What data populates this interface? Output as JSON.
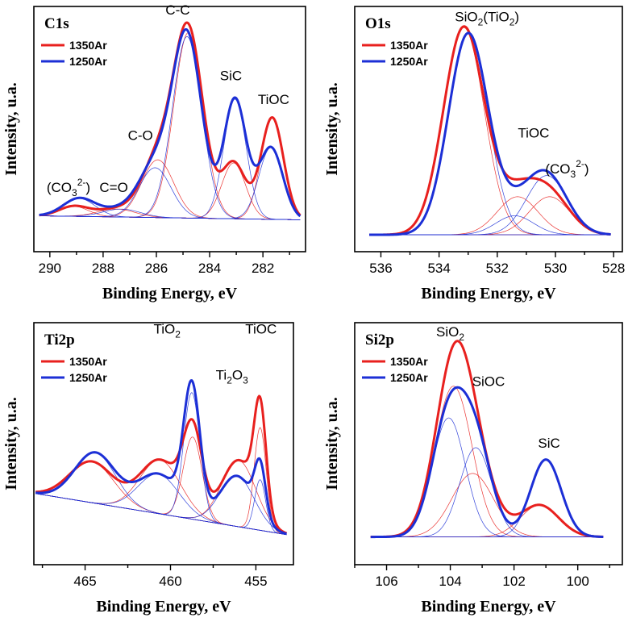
{
  "colors": {
    "red": "#e8201e",
    "blue": "#1c2fd6",
    "black": "#000000"
  },
  "chart_data": [
    {
      "type": "line",
      "panel": "C1s",
      "title": "C1s",
      "xlabel": "Binding Energy, eV",
      "ylabel": "Intensity, u.a.",
      "xlim": [
        290.6,
        280.4
      ],
      "ylim": [
        -0.18,
        1.05
      ],
      "x_reversed": true,
      "xticks": [
        290,
        288,
        286,
        284,
        282
      ],
      "legend": {
        "position": "top-left",
        "entries": [
          "1350Ar",
          "1250Ar"
        ]
      },
      "annotations": [
        {
          "text": "(CO",
          "sub": "3",
          "sup": "2-",
          "tail": ")",
          "x": 289.3,
          "y": 0.12
        },
        {
          "text": "C=O",
          "x": 287.6,
          "y": 0.12
        },
        {
          "text": "C-O",
          "x": 286.6,
          "y": 0.38
        },
        {
          "text": "C-C",
          "x": 285.2,
          "y": 1.01
        },
        {
          "text": "SiC",
          "x": 283.2,
          "y": 0.68
        },
        {
          "text": "TiOC",
          "x": 281.6,
          "y": 0.56
        }
      ],
      "baseline": {
        "x": [
          290.4,
          280.6
        ],
        "y": [
          0.0,
          -0.02
        ]
      },
      "peaks": {
        "1350Ar": [
          [
            289.1,
            0.55,
            0.05
          ],
          [
            287.5,
            0.7,
            0.04
          ],
          [
            285.95,
            0.6,
            0.29
          ],
          [
            284.8,
            0.55,
            0.93
          ],
          [
            283.1,
            0.45,
            0.28
          ],
          [
            281.65,
            0.42,
            0.51
          ]
        ],
        "1250Ar": [
          [
            288.9,
            0.6,
            0.09
          ],
          [
            287.3,
            0.7,
            0.04
          ],
          [
            286.05,
            0.6,
            0.25
          ],
          [
            284.85,
            0.55,
            0.91
          ],
          [
            283.05,
            0.42,
            0.6
          ],
          [
            281.7,
            0.45,
            0.36
          ]
        ]
      },
      "series": [
        {
          "name": "1350Ar",
          "color": "#e8201e",
          "width": 3
        },
        {
          "name": "1250Ar",
          "color": "#1c2fd6",
          "width": 3
        }
      ]
    },
    {
      "type": "line",
      "panel": "O1s",
      "title": "O1s",
      "xlabel": "Binding Energy, eV",
      "ylabel": "Intensity, u.a.",
      "xlim": [
        536.9,
        527.7
      ],
      "ylim": [
        -0.08,
        1.08
      ],
      "x_reversed": true,
      "xticks": [
        536,
        534,
        532,
        530,
        528
      ],
      "legend": {
        "position": "top-left",
        "entries": [
          "1350Ar",
          "1250Ar"
        ]
      },
      "annotations": [
        {
          "text": "SiO",
          "sub": "2",
          "tail": "(TiO",
          "sub2": "2",
          "tail2": ")",
          "x": 532.35,
          "y": 1.01
        },
        {
          "text": "TiOC",
          "x": 530.75,
          "y": 0.46
        },
        {
          "text": "(CO",
          "sub": "3",
          "sup": "2-",
          "tail": ")",
          "x": 529.6,
          "y": 0.29
        }
      ],
      "baseline": {
        "x": [
          536.4,
          528.1
        ],
        "y": [
          0.0,
          0.0
        ]
      },
      "peaks": {
        "1350Ar": [
          [
            533.15,
            0.7,
            0.98
          ],
          [
            531.3,
            0.7,
            0.18
          ],
          [
            530.2,
            0.7,
            0.18
          ]
        ],
        "1250Ar": [
          [
            533.0,
            0.68,
            0.95
          ],
          [
            531.4,
            0.65,
            0.09
          ],
          [
            530.3,
            0.7,
            0.28
          ]
        ]
      },
      "series": [
        {
          "name": "1350Ar",
          "color": "#e8201e",
          "width": 3
        },
        {
          "name": "1250Ar",
          "color": "#1c2fd6",
          "width": 3
        }
      ]
    },
    {
      "type": "line",
      "panel": "Ti2p",
      "title": "Ti2p",
      "xlabel": "Binding Energy, eV",
      "ylabel": "Intensity, u.a.",
      "xlim": [
        468.0,
        452.8
      ],
      "ylim": [
        -0.45,
        1.08
      ],
      "x_reversed": true,
      "xticks": [
        465,
        460,
        455
      ],
      "legend": {
        "position": "top-left",
        "entries": [
          "1350Ar",
          "1250Ar"
        ]
      },
      "annotations": [
        {
          "text": "TiO",
          "sub": "2",
          "x": 460.2,
          "y": 1.01
        },
        {
          "text": "TiOC",
          "x": 454.7,
          "y": 1.01
        },
        {
          "text": "Ti",
          "sub": "2",
          "tail": "O",
          "sub2": "3",
          "x": 456.4,
          "y": 0.72
        }
      ],
      "baseline": {
        "x": [
          467.9,
          453.2
        ],
        "y": [
          0.0,
          -0.26
        ]
      },
      "peaks": {
        "1350Ar": [
          [
            464.6,
            1.3,
            0.26
          ],
          [
            460.6,
            1.2,
            0.34
          ],
          [
            458.7,
            0.55,
            0.52
          ],
          [
            456.0,
            1.0,
            0.42
          ],
          [
            454.75,
            0.35,
            0.65
          ]
        ],
        "1250Ar": [
          [
            464.4,
            1.2,
            0.32
          ],
          [
            460.7,
            1.2,
            0.25
          ],
          [
            458.75,
            0.48,
            0.8
          ],
          [
            456.1,
            1.0,
            0.32
          ],
          [
            454.75,
            0.32,
            0.32
          ]
        ]
      },
      "series": [
        {
          "name": "1350Ar",
          "color": "#e8201e",
          "width": 3
        },
        {
          "name": "1250Ar",
          "color": "#1c2fd6",
          "width": 3
        }
      ]
    },
    {
      "type": "line",
      "panel": "Si2p",
      "title": "Si2p",
      "xlabel": "Binding Energy, eV",
      "ylabel": "Intensity, u.a.",
      "xlim": [
        107.0,
        98.6
      ],
      "ylim": [
        -0.14,
        1.08
      ],
      "x_reversed": true,
      "xticks": [
        106,
        104,
        102,
        100
      ],
      "legend": {
        "position": "top-left",
        "entries": [
          "1350Ar",
          "1250Ar"
        ]
      },
      "annotations": [
        {
          "text": "SiO",
          "sub": "2",
          "x": 104.0,
          "y": 1.01
        },
        {
          "text": "SiOC",
          "x": 102.8,
          "y": 0.76
        },
        {
          "text": "SiC",
          "x": 100.9,
          "y": 0.45
        }
      ],
      "baseline": {
        "x": [
          106.5,
          99.2
        ],
        "y": [
          0.0,
          0.0
        ]
      },
      "peaks": {
        "1350Ar": [
          [
            103.9,
            0.58,
            0.76
          ],
          [
            103.3,
            0.65,
            0.32
          ],
          [
            101.2,
            0.6,
            0.16
          ]
        ],
        "1250Ar": [
          [
            104.05,
            0.52,
            0.6
          ],
          [
            103.2,
            0.5,
            0.45
          ],
          [
            101.0,
            0.48,
            0.39
          ]
        ]
      },
      "series": [
        {
          "name": "1350Ar",
          "color": "#e8201e",
          "width": 3
        },
        {
          "name": "1250Ar",
          "color": "#1c2fd6",
          "width": 3
        }
      ]
    }
  ]
}
